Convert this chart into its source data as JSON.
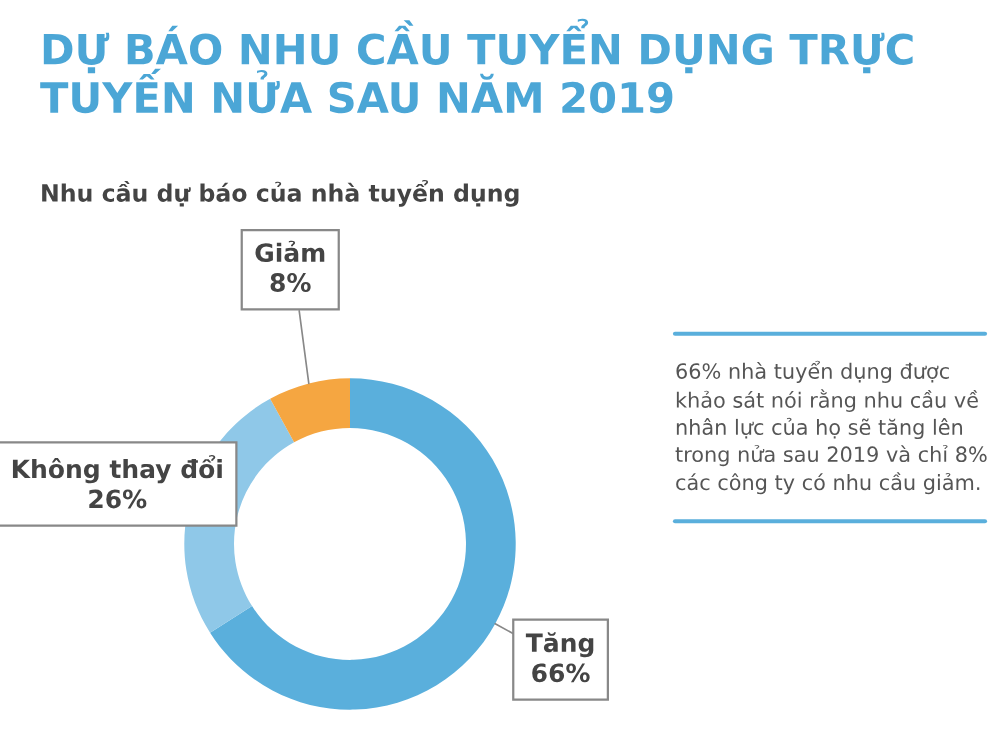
{
  "chart_data": {
    "type": "donut",
    "title": "DỰ BÁO NHU CẦU TUYỂN DỤNG TRỰC TUYẾN NỬA SAU NĂM 2019",
    "subtitle": "Nhu cầu dự báo của nhà tuyển dụng",
    "categories": [
      "Tăng",
      "Không thay đổi",
      "Giảm"
    ],
    "values": [
      66,
      26,
      8
    ],
    "value_labels": [
      "66%",
      "26%",
      "8%"
    ],
    "colors": [
      "#5aafdc",
      "#8fc8e8",
      "#f5a641"
    ],
    "annotations": [
      "66% nhà tuyển dụng được khảo sát nói rằng nhu cầu về nhân lực của họ sẽ tăng lên trong nửa sau 2019 và chỉ 8% các công ty có nhu cầu giảm."
    ]
  }
}
